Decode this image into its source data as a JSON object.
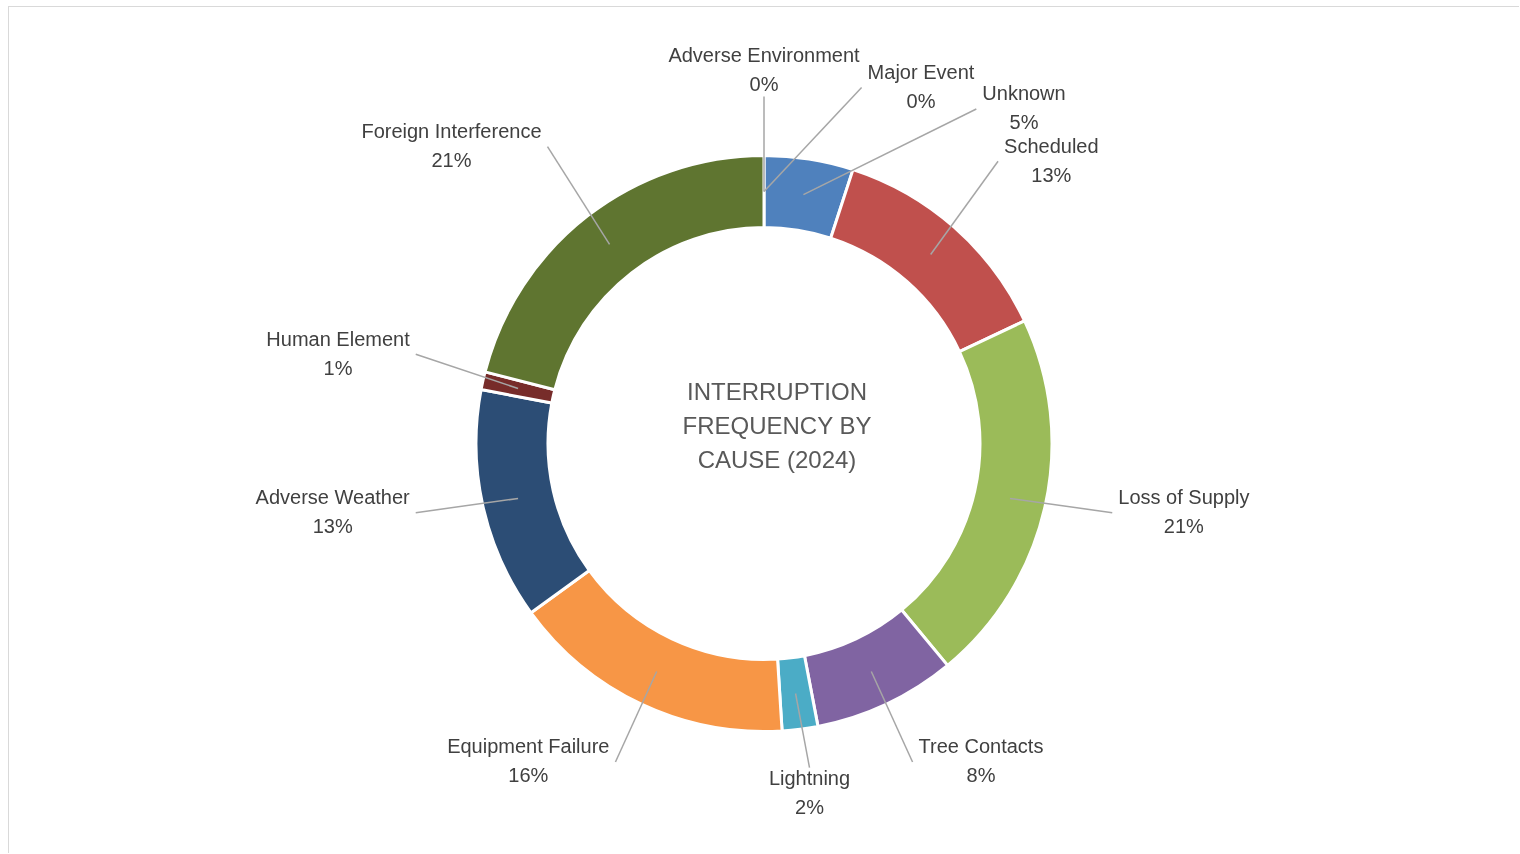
{
  "chart_data": {
    "type": "donut",
    "title": "INTERRUPTION FREQUENCY BY CAUSE (2024)",
    "categories": [
      "Adverse Environment",
      "Major Event",
      "Unknown",
      "Scheduled",
      "Loss of Supply",
      "Tree Contacts",
      "Lightning",
      "Equipment Failure",
      "Adverse Weather",
      "Human Element",
      "Foreign Interference"
    ],
    "values": [
      0,
      0,
      5,
      13,
      21,
      8,
      2,
      16,
      13,
      1,
      21
    ],
    "value_labels": [
      "0%",
      "0%",
      "5%",
      "13%",
      "21%",
      "8%",
      "2%",
      "16%",
      "13%",
      "1%",
      "21%"
    ],
    "colors": [
      "#a5a5a5",
      "#8064a2",
      "#4f81bd",
      "#c0504d",
      "#9bbb59",
      "#8064a2",
      "#4bacc6",
      "#f79646",
      "#2c4d75",
      "#772c2a",
      "#5f7530"
    ],
    "legend": false
  }
}
